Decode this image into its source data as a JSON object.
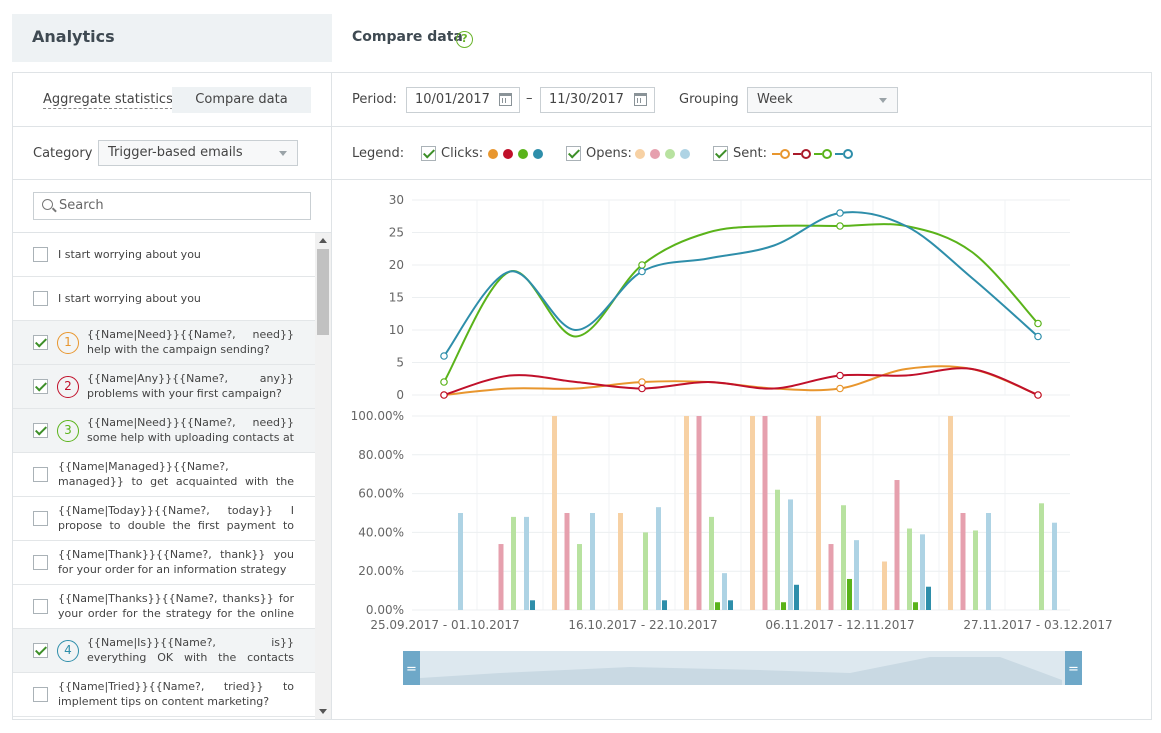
{
  "header": {
    "title": "Analytics",
    "section_title": "Compare data",
    "help_label": "?"
  },
  "tabs": {
    "aggregate": "Aggregate statistics",
    "compare": "Compare data"
  },
  "filters": {
    "period_label": "Period:",
    "date_from": "10/01/2017",
    "date_separator": "–",
    "date_to": "11/30/2017",
    "grouping_label": "Grouping",
    "grouping_value": "Week",
    "category_label": "Category",
    "category_value": "Trigger-based emails"
  },
  "legend": {
    "label": "Legend:",
    "clicks": "Clicks:",
    "opens": "Opens:",
    "sent": "Sent:",
    "clicks_colors": [
      "#e8962e",
      "#c0102a",
      "#5ab31a",
      "#2e8eaa"
    ],
    "opens_colors": [
      "#f7d1a4",
      "#e6a0ae",
      "#b8e2a0",
      "#aed3e4"
    ],
    "sent_colors": [
      "#e8962e",
      "#a91a2a",
      "#5ab31a",
      "#2e8eaa"
    ]
  },
  "search": {
    "placeholder": "Search"
  },
  "emails": [
    {
      "text": "I start worrying about you",
      "checked": false,
      "num": ""
    },
    {
      "text": "I start worrying about you",
      "checked": false,
      "num": ""
    },
    {
      "text": "{{Name|Need}}{{Name?, need}} help with the campaign sending?",
      "checked": true,
      "num": "1",
      "color": "#e8962e"
    },
    {
      "text": "{{Name|Any}}{{Name?, any}} problems with your first campaign?",
      "checked": true,
      "num": "2",
      "color": "#c0102a"
    },
    {
      "text": "{{Name|Need}}{{Name?, need}} some help with uploading contacts at ...",
      "checked": true,
      "num": "3",
      "color": "#5ab31a"
    },
    {
      "text": "{{Name|Managed}}{{Name?, managed}} to get acquainted with the strategy for the ...",
      "checked": false,
      "num": ""
    },
    {
      "text": "{{Name|Today}}{{Name?, today}} I propose to double the first payment to UniSender",
      "checked": false,
      "num": ""
    },
    {
      "text": "{{Name|Thank}}{{Name?, thank}} you for your order for an information strategy",
      "checked": false,
      "num": ""
    },
    {
      "text": "{{Name|Thanks}}{{Name?, thanks}} for your order for the strategy for the online store",
      "checked": false,
      "num": ""
    },
    {
      "text": "{{Name|Is}}{{Name?, is}} everything OK with the contacts uploading?",
      "checked": true,
      "num": "4",
      "color": "#2e8eaa"
    },
    {
      "text": "{{Name|Tried}}{{Name?, tried}} to implement tips on content marketing?",
      "checked": false,
      "num": ""
    }
  ],
  "chart_data": [
    {
      "type": "line",
      "yticks": [
        "30",
        "25",
        "20",
        "15",
        "10",
        "5",
        "0"
      ],
      "ylim": [
        0,
        30
      ],
      "x": [
        0,
        1,
        2,
        3,
        4,
        5,
        6,
        7,
        8,
        9
      ],
      "series": [
        {
          "color": "#e8962e",
          "values": [
            0,
            1,
            1,
            2,
            2,
            1,
            1,
            4,
            4,
            0
          ]
        },
        {
          "color": "#c0102a",
          "values": [
            0,
            3,
            2,
            1,
            2,
            1,
            3,
            3,
            4,
            0
          ]
        },
        {
          "color": "#5ab31a",
          "values": [
            2,
            19,
            9,
            20,
            25,
            26,
            26,
            26,
            22,
            11
          ]
        },
        {
          "color": "#2e8eaa",
          "values": [
            6,
            19,
            10,
            19,
            21,
            23,
            28,
            26,
            18,
            9
          ]
        }
      ]
    },
    {
      "type": "bar",
      "yticks": [
        "100.00%",
        "80.00%",
        "60.00%",
        "40.00%",
        "20.00%",
        "0.00%"
      ],
      "ylim": [
        0,
        100
      ],
      "categories": [
        "25.09.2017 - 01.10.2017",
        "16.10.2017 - 22.10.2017",
        "06.11.2017 - 12.11.2017",
        "27.11.2017 - 03.12.2017"
      ],
      "groups": [
        [
          0,
          0,
          0,
          50,
          0,
          0,
          0,
          0
        ],
        [
          0,
          34,
          48,
          48,
          0,
          0,
          0,
          5
        ],
        [
          100,
          50,
          34,
          50,
          0,
          0,
          0,
          0
        ],
        [
          50,
          0,
          40,
          53,
          0,
          0,
          0,
          5
        ],
        [
          100,
          100,
          48,
          19,
          0,
          0,
          4,
          5
        ],
        [
          100,
          100,
          62,
          57,
          0,
          0,
          4,
          13
        ],
        [
          100,
          34,
          54,
          36,
          0,
          0,
          16,
          0
        ],
        [
          25,
          67,
          42,
          39,
          0,
          0,
          4,
          12
        ],
        [
          100,
          50,
          41,
          50,
          0,
          0,
          0,
          0
        ],
        [
          0,
          0,
          55,
          45,
          0,
          0,
          0,
          0
        ]
      ],
      "colors": [
        "#f7d1a4",
        "#e6a0ae",
        "#b8e2a0",
        "#aed3e4",
        "#e8962e",
        "#c0102a",
        "#5ab31a",
        "#2e8eaa"
      ]
    }
  ],
  "range_slider": {
    "handle_label": "="
  }
}
